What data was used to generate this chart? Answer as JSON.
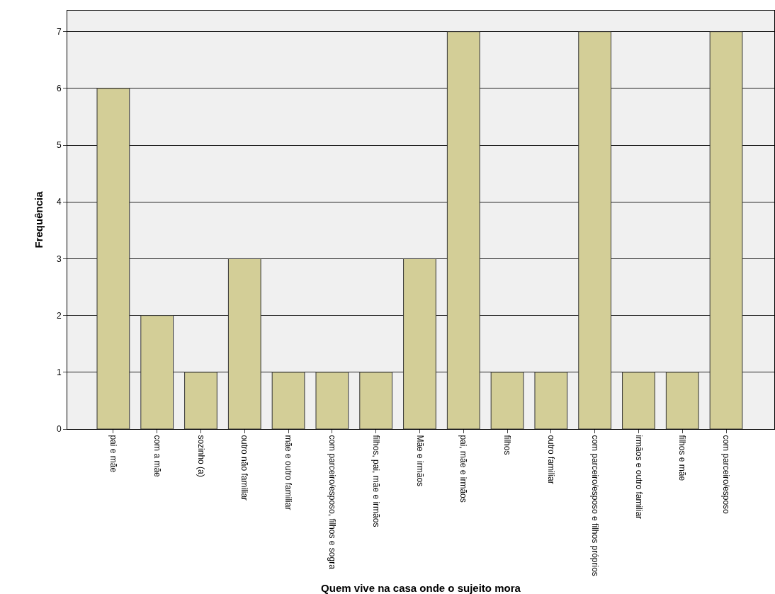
{
  "chart_data": {
    "type": "bar",
    "xlabel": "Quem vive na casa onde o sujeito mora",
    "ylabel": "Frequência",
    "categories": [
      "pai e mãe",
      "com a mãe",
      "sozinho (a)",
      "outro não familiar",
      "mãe e outro familiar",
      "com parceiro/esposo, filhos e sogra",
      "filhos, pai, mãe e irmãos",
      "Mãe e irmãos",
      "pai, mãe e irmãos",
      "filhos",
      "outro familiar",
      "com parceiro/esposo e filhos próprios",
      "irmãos e outro familiar",
      "filhos e mãe",
      "com parceiro/esposo"
    ],
    "values": [
      6,
      2,
      1,
      3,
      1,
      1,
      1,
      3,
      7,
      1,
      1,
      7,
      1,
      1,
      7
    ],
    "color": "#d3ce97",
    "ylim": [
      0,
      7.37
    ],
    "yticks": [
      0,
      1,
      2,
      3,
      4,
      5,
      6,
      7
    ],
    "grid": "y"
  }
}
